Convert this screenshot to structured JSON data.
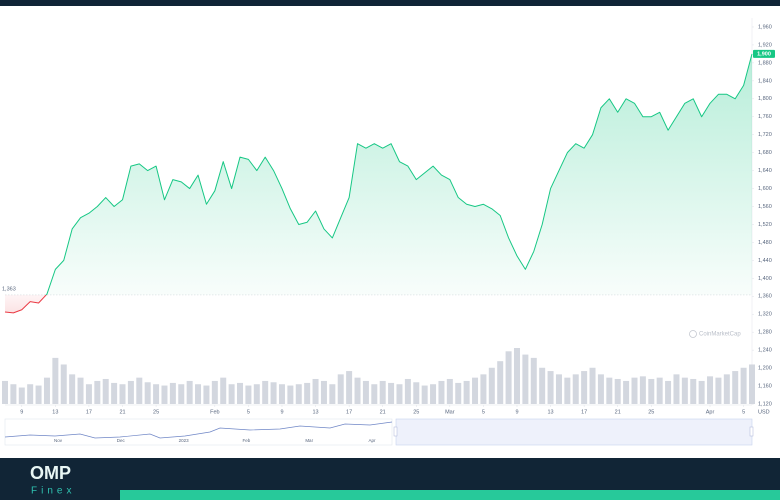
{
  "chart_data": {
    "type": "line",
    "values": [
      1325,
      1323,
      1330,
      1348,
      1345,
      1365,
      1420,
      1440,
      1510,
      1535,
      1545,
      1560,
      1580,
      1560,
      1575,
      1650,
      1655,
      1640,
      1650,
      1575,
      1620,
      1615,
      1600,
      1630,
      1565,
      1595,
      1660,
      1600,
      1670,
      1665,
      1640,
      1670,
      1640,
      1600,
      1555,
      1520,
      1525,
      1550,
      1510,
      1490,
      1535,
      1580,
      1700,
      1690,
      1700,
      1690,
      1700,
      1660,
      1650,
      1620,
      1635,
      1650,
      1630,
      1620,
      1580,
      1565,
      1560,
      1565,
      1555,
      1540,
      1490,
      1450,
      1420,
      1460,
      1520,
      1600,
      1640,
      1680,
      1700,
      1690,
      1720,
      1780,
      1800,
      1770,
      1800,
      1790,
      1760,
      1760,
      1770,
      1730,
      1760,
      1790,
      1800,
      1760,
      1790,
      1810,
      1810,
      1800,
      1830,
      1900
    ],
    "volume": [
      35,
      30,
      25,
      30,
      28,
      40,
      70,
      60,
      45,
      40,
      30,
      35,
      38,
      32,
      30,
      35,
      40,
      33,
      30,
      28,
      32,
      30,
      35,
      30,
      28,
      35,
      40,
      30,
      32,
      28,
      30,
      35,
      33,
      30,
      28,
      30,
      32,
      38,
      35,
      30,
      45,
      50,
      40,
      35,
      30,
      35,
      32,
      30,
      38,
      33,
      28,
      30,
      35,
      38,
      32,
      35,
      40,
      45,
      55,
      65,
      80,
      85,
      75,
      70,
      55,
      50,
      45,
      40,
      45,
      50,
      55,
      45,
      40,
      38,
      35,
      40,
      42,
      38,
      40,
      35,
      45,
      40,
      38,
      35,
      42,
      40,
      45,
      50,
      55,
      60
    ],
    "up_color": "#16c784",
    "down_color": "#ea3943",
    "volume_color": "#d3d7df",
    "baseline": {
      "value": 1363,
      "label": "1,363"
    },
    "current_price": {
      "value": 1900,
      "label": "1,900"
    },
    "xlim": [
      0,
      89
    ],
    "xticks": [
      {
        "value": 2,
        "label": "9"
      },
      {
        "value": 6,
        "label": "13"
      },
      {
        "value": 10,
        "label": "17"
      },
      {
        "value": 14,
        "label": "21"
      },
      {
        "value": 18,
        "label": "25"
      },
      {
        "value": 25,
        "label": "Feb"
      },
      {
        "value": 29,
        "label": "5"
      },
      {
        "value": 33,
        "label": "9"
      },
      {
        "value": 37,
        "label": "13"
      },
      {
        "value": 41,
        "label": "17"
      },
      {
        "value": 45,
        "label": "21"
      },
      {
        "value": 49,
        "label": "25"
      },
      {
        "value": 53,
        "label": "Mar"
      },
      {
        "value": 57,
        "label": "5"
      },
      {
        "value": 61,
        "label": "9"
      },
      {
        "value": 65,
        "label": "13"
      },
      {
        "value": 69,
        "label": "17"
      },
      {
        "value": 73,
        "label": "21"
      },
      {
        "value": 77,
        "label": "25"
      },
      {
        "value": 84,
        "label": "Apr"
      },
      {
        "value": 88,
        "label": "5"
      }
    ],
    "x_unit": "USD",
    "ylim": [
      1120,
      1980
    ],
    "yticks": [
      {
        "value": 1120,
        "label": "1,120"
      },
      {
        "value": 1160,
        "label": "1,160"
      },
      {
        "value": 1200,
        "label": "1,200"
      },
      {
        "value": 1240,
        "label": "1,240"
      },
      {
        "value": 1280,
        "label": "1,280"
      },
      {
        "value": 1320,
        "label": "1,320"
      },
      {
        "value": 1360,
        "label": "1,360"
      },
      {
        "value": 1400,
        "label": "1,400"
      },
      {
        "value": 1440,
        "label": "1,440"
      },
      {
        "value": 1480,
        "label": "1,480"
      },
      {
        "value": 1520,
        "label": "1,520"
      },
      {
        "value": 1560,
        "label": "1,560"
      },
      {
        "value": 1600,
        "label": "1,600"
      },
      {
        "value": 1640,
        "label": "1,640"
      },
      {
        "value": 1680,
        "label": "1,680"
      },
      {
        "value": 1720,
        "label": "1,720"
      },
      {
        "value": 1760,
        "label": "1,760"
      },
      {
        "value": 1800,
        "label": "1,800"
      },
      {
        "value": 1840,
        "label": "1,840"
      },
      {
        "value": 1880,
        "label": "1,880"
      },
      {
        "value": 1920,
        "label": "1,920"
      },
      {
        "value": 1960,
        "label": "1,960"
      }
    ],
    "grid": false,
    "watermark": "CoinMarketCap",
    "navigator_labels": [
      "Nov",
      "Dec",
      "2023",
      "Feb",
      "Mar",
      "Apr"
    ]
  },
  "footer": {
    "logo": "OMP",
    "tagline": "Finex"
  }
}
